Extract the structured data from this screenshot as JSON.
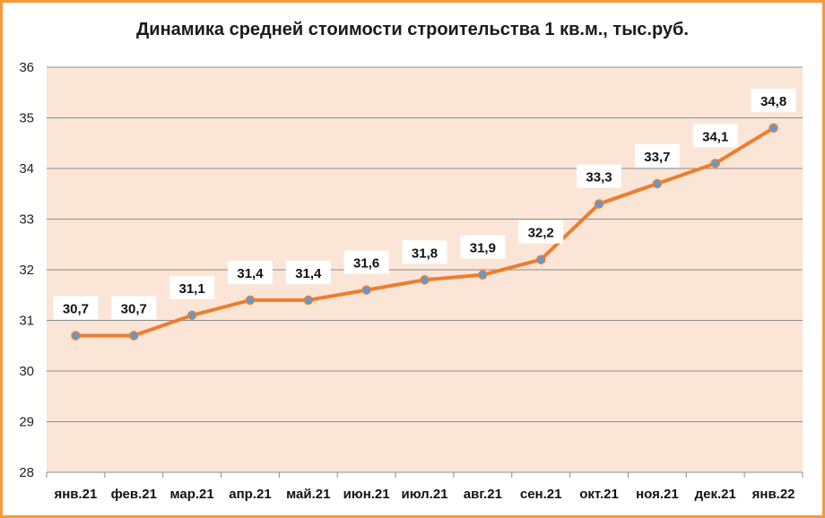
{
  "chart_data": {
    "type": "line",
    "title": "Динамика средней стоимости строительства 1 кв.м., тыс.руб.",
    "categories": [
      "янв.21",
      "фев.21",
      "мар.21",
      "апр.21",
      "май.21",
      "июн.21",
      "июл.21",
      "авг.21",
      "сен.21",
      "окт.21",
      "ноя.21",
      "дек.21",
      "янв.22"
    ],
    "series": [
      {
        "values": [
          30.7,
          30.7,
          31.1,
          31.4,
          31.4,
          31.6,
          31.8,
          31.9,
          32.2,
          33.3,
          33.7,
          34.1,
          34.8
        ],
        "labels": [
          "30,7",
          "30,7",
          "31,1",
          "31,4",
          "31,4",
          "31,6",
          "31,8",
          "31,9",
          "32,2",
          "33,3",
          "33,7",
          "34,1",
          "34,8"
        ]
      }
    ],
    "ylim": [
      28,
      36
    ],
    "yticks": [
      "28",
      "29",
      "30",
      "31",
      "32",
      "33",
      "34",
      "35",
      "36"
    ],
    "grid": true,
    "colors": {
      "line": "#ed7d31",
      "marker": "#5b9bd5",
      "plot_background": "#fbe5d6",
      "gridline": "#8c8c8c",
      "frame": "#f39a3c"
    }
  }
}
